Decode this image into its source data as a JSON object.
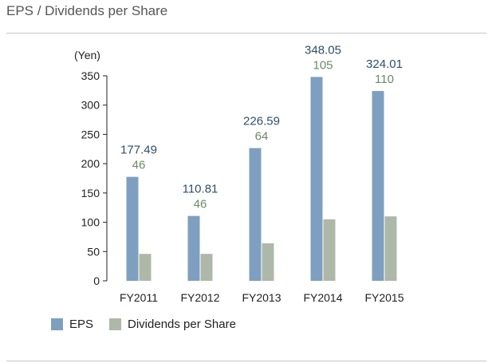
{
  "title": "EPS / Dividends per Share",
  "colors": {
    "eps": "#7f9fc0",
    "dividends": "#aeb8a8",
    "eps_label": "#2f4f6a",
    "div_label": "#6b8a66",
    "axis": "#222222"
  },
  "chart_data": {
    "type": "bar",
    "ylabel": "(Yen)",
    "ylim": [
      0,
      350
    ],
    "yticks": [
      0,
      50,
      100,
      150,
      200,
      250,
      300,
      350
    ],
    "categories": [
      "FY2011",
      "FY2012",
      "FY2013",
      "FY2014",
      "FY2015"
    ],
    "series": [
      {
        "name": "EPS",
        "values": [
          177.49,
          110.81,
          226.59,
          348.05,
          324.01
        ],
        "labels": [
          "177.49",
          "110.81",
          "226.59",
          "348.05",
          "324.01"
        ]
      },
      {
        "name": "Dividends per Share",
        "values": [
          46,
          46,
          64,
          105,
          110
        ],
        "labels": [
          "46",
          "46",
          "64",
          "105",
          "110"
        ]
      }
    ],
    "legend_position": "bottom-left",
    "grid": false
  }
}
